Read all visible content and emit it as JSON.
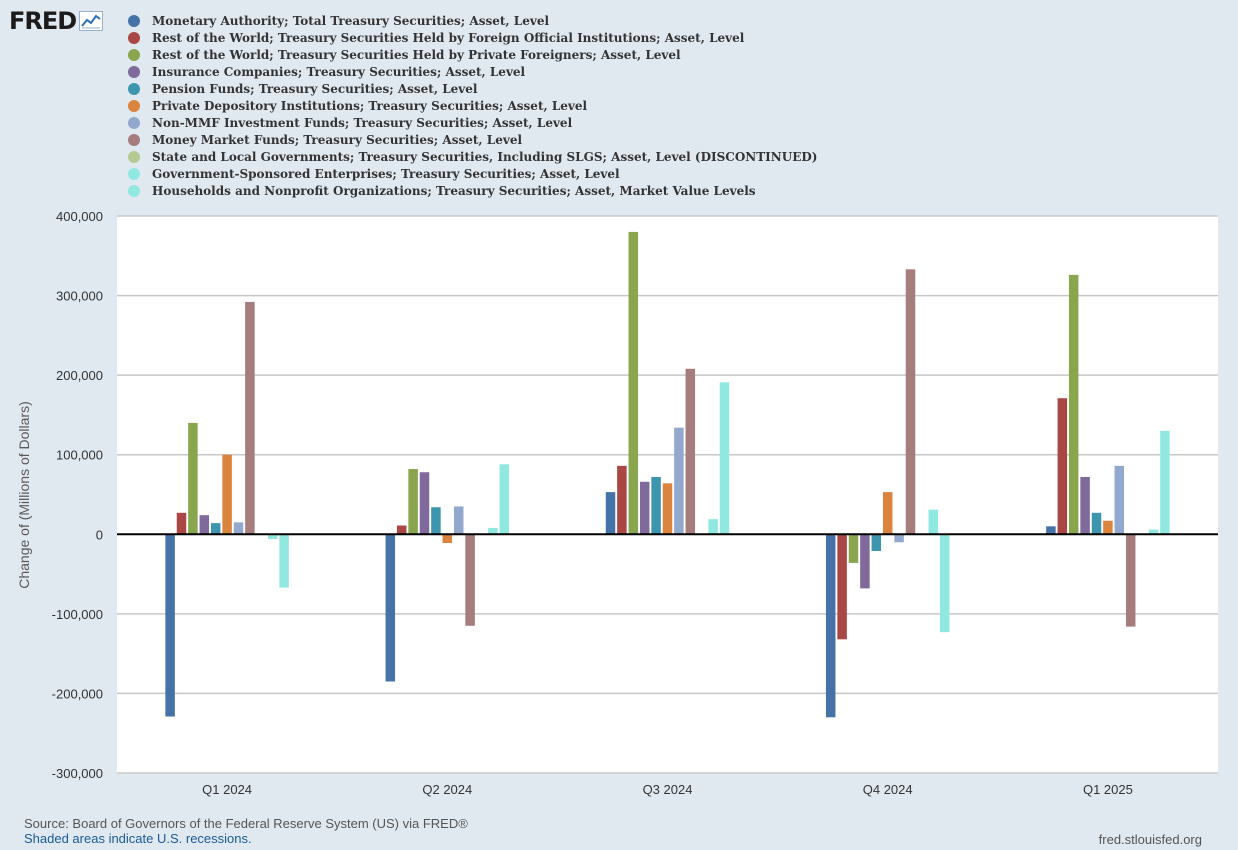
{
  "logo": {
    "text": "FRED",
    "icon": "line-chart-icon"
  },
  "chart_data": {
    "type": "bar",
    "title": "",
    "xlabel": "",
    "ylabel": "Change of (Millions of Dollars)",
    "ylim": [
      -300000,
      400000
    ],
    "yticks": [
      -300000,
      -200000,
      -100000,
      0,
      100000,
      200000,
      300000,
      400000
    ],
    "ytick_labels": [
      "-300,000",
      "-200,000",
      "-100,000",
      "0",
      "100,000",
      "200,000",
      "300,000",
      "400,000"
    ],
    "grid": true,
    "legend_position": "top-left",
    "categories": [
      "Q1 2024",
      "Q2 2024",
      "Q3 2024",
      "Q4 2024",
      "Q1 2025"
    ],
    "series": [
      {
        "name": "Monetary Authority; Total Treasury Securities; Asset, Level",
        "color": "#4572a7",
        "values": [
          -229000,
          -185000,
          53000,
          -230000,
          10000
        ]
      },
      {
        "name": "Rest of the World; Treasury Securities Held by Foreign Official Institutions; Asset, Level",
        "color": "#aa4643",
        "values": [
          27000,
          11000,
          86000,
          -132000,
          171000
        ]
      },
      {
        "name": "Rest of the World; Treasury Securities Held by Private Foreigners; Asset, Level",
        "color": "#89a54e",
        "values": [
          140000,
          82000,
          380000,
          -36000,
          326000
        ]
      },
      {
        "name": "Insurance Companies; Treasury Securities; Asset, Level",
        "color": "#80699b",
        "values": [
          24000,
          78000,
          66000,
          -68000,
          72000
        ]
      },
      {
        "name": "Pension Funds; Treasury Securities; Asset, Level",
        "color": "#3d96ae",
        "values": [
          14000,
          34000,
          72000,
          -21000,
          27000
        ]
      },
      {
        "name": "Private Depository Institutions; Treasury Securities; Asset, Level",
        "color": "#db843d",
        "values": [
          100000,
          -11000,
          64000,
          53000,
          17000
        ]
      },
      {
        "name": "Non-MMF Investment Funds; Treasury Securities; Asset, Level",
        "color": "#92a8cd",
        "values": [
          15000,
          35000,
          134000,
          -10000,
          86000
        ]
      },
      {
        "name": "Money Market Funds; Treasury Securities; Asset, Level",
        "color": "#a47d7c",
        "values": [
          292000,
          -115000,
          208000,
          333000,
          -116000
        ]
      },
      {
        "name": "State and Local Governments; Treasury Securities, Including SLGS; Asset, Level (DISCONTINUED)",
        "color": "#b5ca92",
        "values": [
          null,
          null,
          null,
          null,
          null
        ]
      },
      {
        "name": "Government-Sponsored Enterprises; Treasury Securities; Asset, Level",
        "color": "#91e8e1",
        "values": [
          -6000,
          8000,
          19000,
          31000,
          6000
        ]
      },
      {
        "name": "Households and Nonprofit Organizations; Treasury Securities; Asset, Market Value Levels",
        "color": "#91e8e1",
        "values": [
          -67000,
          88000,
          191000,
          -123000,
          130000
        ]
      }
    ]
  },
  "footer": {
    "source": "Source: Board of Governors of the Federal Reserve System (US) via FRED®",
    "recessions": "Shaded areas indicate U.S. recessions.",
    "site": "fred.stlouisfed.org"
  }
}
